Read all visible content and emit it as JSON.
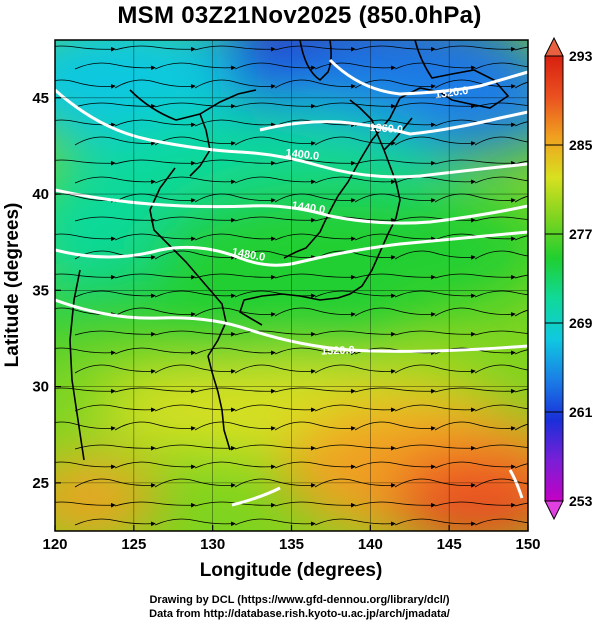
{
  "title": "MSM 03Z21Nov2025 (850.0hPa)",
  "map": {
    "lon_range": [
      120,
      150
    ],
    "lat_range": [
      22.5,
      48
    ],
    "x_ticks": [
      "120",
      "125",
      "130",
      "135",
      "140",
      "145",
      "150"
    ],
    "y_ticks": [
      "25",
      "30",
      "35",
      "40",
      "45"
    ],
    "xlabel": "Longitude (degrees)",
    "ylabel": "Latitude  (degrees)",
    "contours": [
      {
        "label": "1320.0",
        "value": 1320
      },
      {
        "label": "1360.0",
        "value": 1360
      },
      {
        "label": "1400.0",
        "value": 1400
      },
      {
        "label": "1440.0",
        "value": 1440
      },
      {
        "label": "1480.0",
        "value": 1480
      },
      {
        "label": "1520.0",
        "value": 1520
      }
    ]
  },
  "colorbar": {
    "ticks": [
      "293",
      "285",
      "277",
      "269",
      "261",
      "253"
    ],
    "min": 253,
    "max": 293,
    "colors": [
      "#c400c4",
      "#7a1fd6",
      "#1a2fd9",
      "#1a7fe6",
      "#10c8e0",
      "#10d99a",
      "#20cf30",
      "#7ed420",
      "#d8e020",
      "#f0a020",
      "#ea5020",
      "#d82010"
    ]
  },
  "credits": {
    "line1": "Drawing by DCL (https://www.gfd-dennou.org/library/dcl/)",
    "line2": "Data from http://database.rish.kyoto-u.ac.jp/arch/jmadata/"
  }
}
